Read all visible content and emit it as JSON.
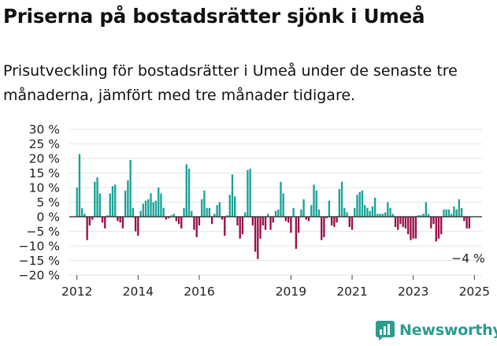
{
  "header": {
    "title": "Priserna på bostadsrätter sjönk i Umeå",
    "subtitle": "Prisutveckling för bostadsrätter i Umeå under de senaste tre månaderna, jämfört med tre månader tidigare."
  },
  "brand": {
    "name": "Newsworthy",
    "icon": "newsworthy-logo-icon"
  },
  "colors": {
    "positive": "#17a398",
    "negative": "#9b0d4b",
    "gridline": "#e6e6e6",
    "brand": "#2a9d8f"
  },
  "chart_data": {
    "type": "bar",
    "title": "Priserna på bostadsrätter sjönk i Umeå",
    "xlabel": "",
    "ylabel": "",
    "ylim": [
      -20,
      30
    ],
    "yticks": [
      30,
      25,
      20,
      15,
      10,
      5,
      0,
      -5,
      -10,
      -15,
      -20
    ],
    "ytick_labels": [
      "30 %",
      "25 %",
      "20 %",
      "15 %",
      "10 %",
      "5 %",
      "0 %",
      "−5 %",
      "−10 %",
      "−15 %",
      "−20 %"
    ],
    "xlim": [
      2011.75,
      2025.25
    ],
    "xticks": [
      2012,
      2014,
      2016,
      2019,
      2021,
      2023,
      2025
    ],
    "xtick_labels": [
      "2012",
      "2014",
      "2016",
      "2019",
      "2021",
      "2023",
      "2025"
    ],
    "start_year": 2012.0,
    "step_years": 0.08333,
    "values": [
      10,
      21.5,
      3,
      1,
      -8,
      -3,
      -1,
      12,
      13.5,
      8,
      -2,
      -4,
      0.5,
      8,
      10.5,
      11,
      -1.5,
      -2,
      -4,
      9,
      12.5,
      19.5,
      3,
      -5,
      -6.5,
      2,
      4.5,
      5.5,
      6,
      8,
      5,
      5.5,
      10,
      8,
      3,
      -1,
      -0.5,
      0.5,
      1,
      -1.5,
      -2.5,
      -4,
      3,
      18,
      16.5,
      2,
      -4.5,
      -7,
      -3,
      6,
      9,
      3,
      3,
      -2.5,
      1,
      4,
      5,
      -1,
      -6.5,
      0.5,
      7.5,
      14.5,
      7,
      -3,
      -7.5,
      -6,
      1.5,
      16,
      16.5,
      -3,
      -12,
      -14.5,
      -7.5,
      -3,
      -4.5,
      1,
      -4.5,
      -2,
      2,
      2.5,
      12,
      8,
      -1.5,
      -2,
      -5.5,
      3,
      -11,
      -5.5,
      2.5,
      6,
      -1,
      -1.5,
      4,
      11,
      9,
      2.5,
      -8,
      -7,
      -0.5,
      5.5,
      -3,
      -3.5,
      -2,
      9.5,
      12,
      3,
      1.5,
      -3.5,
      -4.5,
      3,
      7.5,
      8.5,
      9,
      4,
      3,
      2,
      3.5,
      6.5,
      1,
      1,
      1,
      1.5,
      5,
      3,
      1,
      -3.5,
      -4.5,
      -2.5,
      -3.5,
      -4,
      -6,
      -8,
      -7.5,
      -7.5,
      0.5,
      0.5,
      1,
      5,
      1,
      -4,
      -2.5,
      -8.5,
      -7.5,
      -6,
      2.5,
      2.5,
      2.5,
      1,
      3.5,
      2.5,
      6,
      3,
      -1.5,
      -4,
      -4
    ],
    "annotation": {
      "label": "−4 %",
      "value": -4
    }
  }
}
